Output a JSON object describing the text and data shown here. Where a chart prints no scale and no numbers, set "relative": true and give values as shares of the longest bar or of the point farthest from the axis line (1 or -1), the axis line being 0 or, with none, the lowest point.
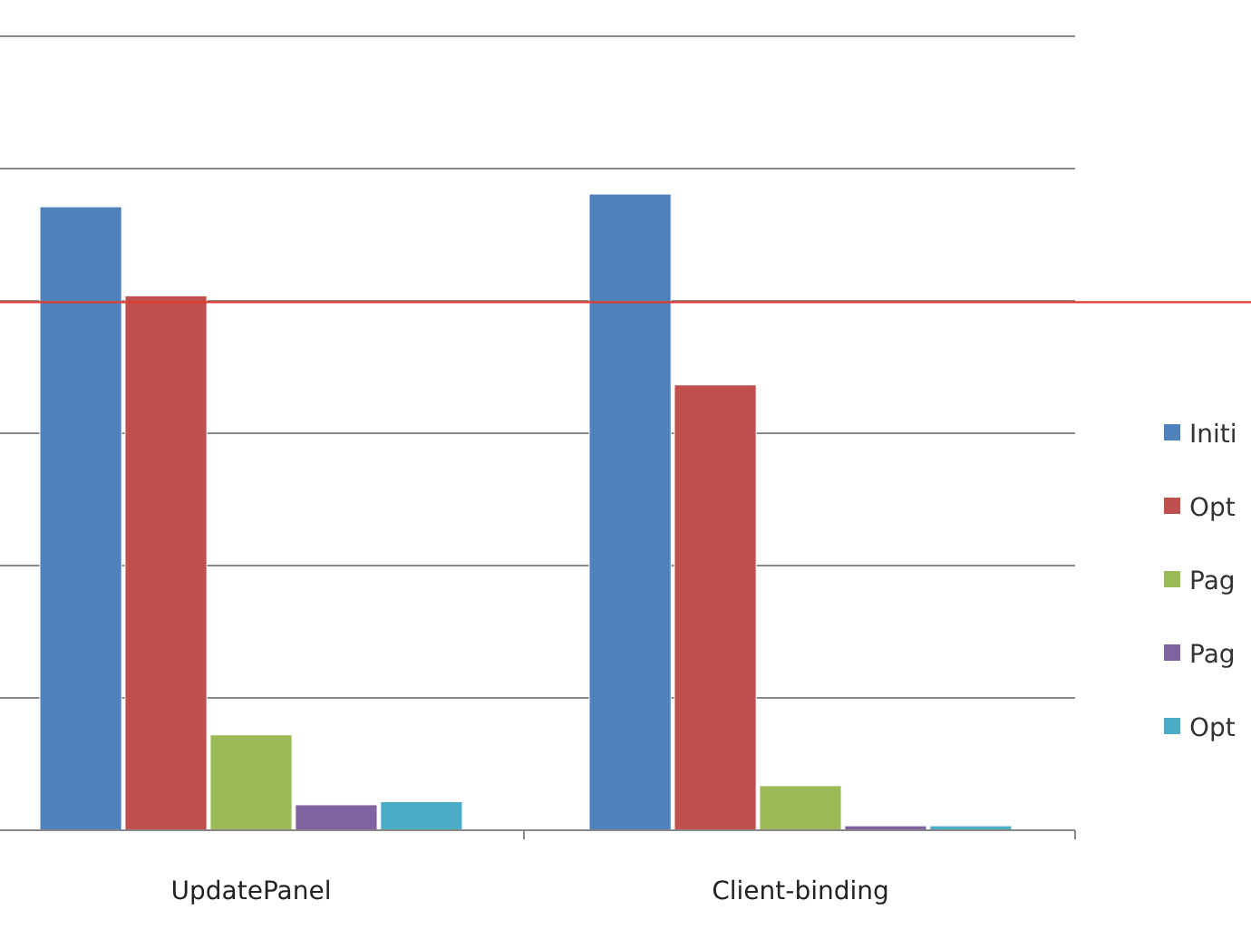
{
  "chart_data": {
    "type": "bar",
    "relative": true,
    "categories": [
      "UpdatePanel",
      "Client-binding"
    ],
    "series": [
      {
        "name": "Initi",
        "color": "#4f81bd",
        "values": [
          0.98,
          1
        ]
      },
      {
        "name": "Opt",
        "color": "#c0504d",
        "values": [
          0.84,
          0.7
        ]
      },
      {
        "name": "Pag",
        "color": "#9bbb59",
        "values": [
          0.15,
          0.07
        ]
      },
      {
        "name": "Pag",
        "color": "#8064a2",
        "values": [
          0.04,
          0.007
        ]
      },
      {
        "name": "Opt",
        "color": "#4bacc6",
        "values": [
          0.045,
          0.007
        ]
      }
    ],
    "ref_lines": [
      {
        "axis": "y",
        "value": 0.83,
        "color": "#e03c31"
      }
    ],
    "legend": "right"
  }
}
